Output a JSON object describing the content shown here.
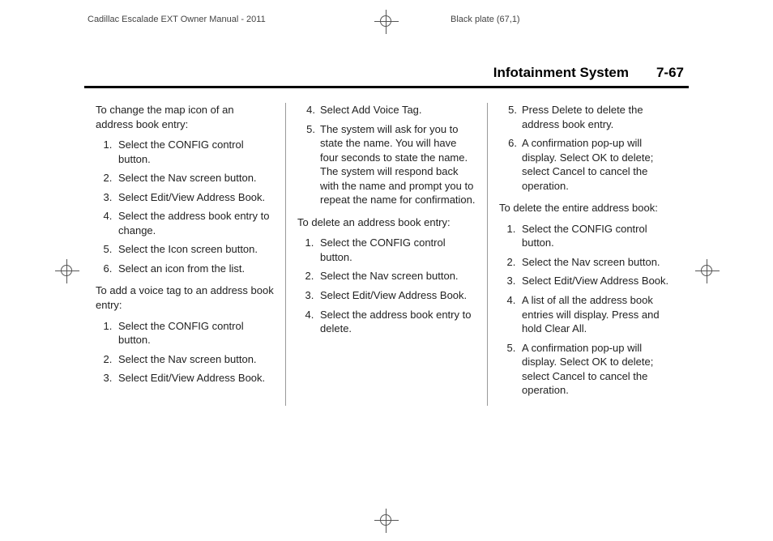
{
  "crop": {
    "manual_title": "Cadillac Escalade EXT Owner Manual - 2011",
    "plate": "Black plate (67,1)"
  },
  "header": {
    "section_title": "Infotainment System",
    "page_num": "7-67"
  },
  "col1": {
    "intro1": "To change the map icon of an address book entry:",
    "list1": [
      "Select the CONFIG control button.",
      "Select the Nav screen button.",
      "Select Edit/View Address Book.",
      "Select the address book entry to change.",
      "Select the Icon screen button.",
      "Select an icon from the list."
    ],
    "intro2": "To add a voice tag to an address book entry:",
    "list2": [
      "Select the CONFIG control button.",
      "Select the Nav screen button.",
      "Select Edit/View Address Book."
    ]
  },
  "col2": {
    "cont": [
      {
        "n": "4.",
        "t": "Select Add Voice Tag."
      },
      {
        "n": "5.",
        "t": "The system will ask for you to state the name. You will have four seconds to state the name. The system will respond back with the name and prompt you to repeat the name for confirmation."
      }
    ],
    "intro1": "To delete an address book entry:",
    "list1": [
      "Select the CONFIG control button.",
      "Select the Nav screen button.",
      "Select Edit/View Address Book.",
      "Select the address book entry to delete."
    ]
  },
  "col3": {
    "cont": [
      {
        "n": "5.",
        "t": "Press Delete to delete the address book entry."
      },
      {
        "n": "6.",
        "t": "A confirmation pop-up will display. Select OK to delete; select Cancel to cancel the operation."
      }
    ],
    "intro1": "To delete the entire address book:",
    "list1": [
      "Select the CONFIG control button.",
      "Select the Nav screen button.",
      "Select Edit/View Address Book.",
      "A list of all the address book entries will display. Press and hold Clear All.",
      "A confirmation pop-up will display. Select OK to delete; select Cancel to cancel the operation."
    ]
  }
}
